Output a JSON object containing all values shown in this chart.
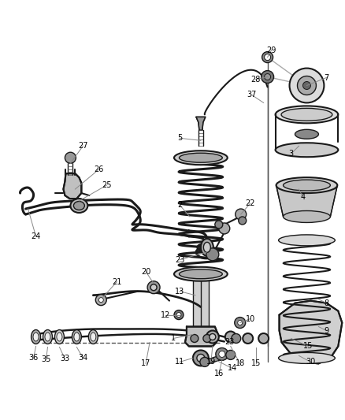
{
  "bg_color": "#ffffff",
  "line_color": "#1a1a1a",
  "gray_dark": "#333333",
  "gray_mid": "#666666",
  "gray_light": "#aaaaaa",
  "label_line_color": "#888888",
  "figsize": [
    4.39,
    5.33
  ],
  "dpi": 100,
  "label_fs": 7.0
}
